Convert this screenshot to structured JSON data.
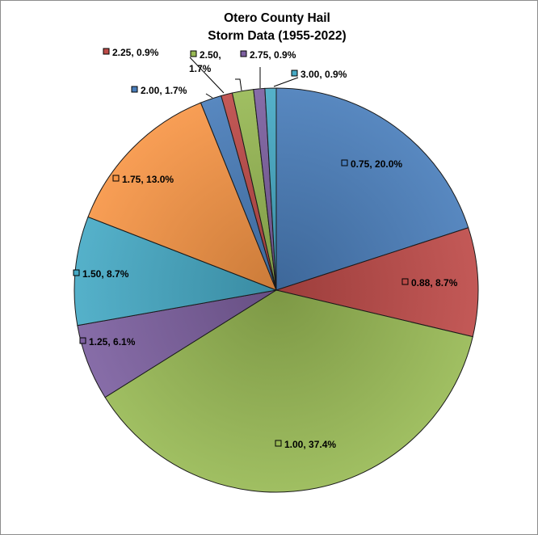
{
  "chart_data": {
    "type": "pie",
    "title_lines": [
      "Otero County Hail",
      "Storm Data (1955-2022)"
    ],
    "slices": [
      {
        "label": "0.75",
        "value": 20.0,
        "color": "#4a7ebb"
      },
      {
        "label": "0.88",
        "value": 8.7,
        "color": "#be4b48"
      },
      {
        "label": "1.00",
        "value": 37.4,
        "color": "#98b954"
      },
      {
        "label": "1.25",
        "value": 6.1,
        "color": "#7d60a0"
      },
      {
        "label": "1.50",
        "value": 8.7,
        "color": "#46aac5"
      },
      {
        "label": "1.75",
        "value": 13.0,
        "color": "#f79646"
      },
      {
        "label": "2.00",
        "value": 1.7,
        "color": "#4a7ebb"
      },
      {
        "label": "2.25",
        "value": 0.9,
        "color": "#be4b48"
      },
      {
        "label": "2.50",
        "value": 1.7,
        "color": "#98b954"
      },
      {
        "label": "2.75",
        "value": 0.9,
        "color": "#7d60a0"
      },
      {
        "label": "3.00",
        "value": 0.9,
        "color": "#46aac5"
      }
    ],
    "label_texts": [
      [
        "0.75, 20.0%"
      ],
      [
        "0.88, 8.7%"
      ],
      [
        "1.00, 37.4%"
      ],
      [
        "1.25, 6.1%"
      ],
      [
        "1.50, 8.7%"
      ],
      [
        "1.75, 13.0%"
      ],
      [
        "2.00, 1.7%"
      ],
      [
        "2.25, 0.9%"
      ],
      [
        "2.50,",
        "1.7%"
      ],
      [
        "2.75, 0.9%"
      ],
      [
        "3.00, 0.9%"
      ]
    ],
    "legend": "none",
    "label_format": "category, percent"
  }
}
